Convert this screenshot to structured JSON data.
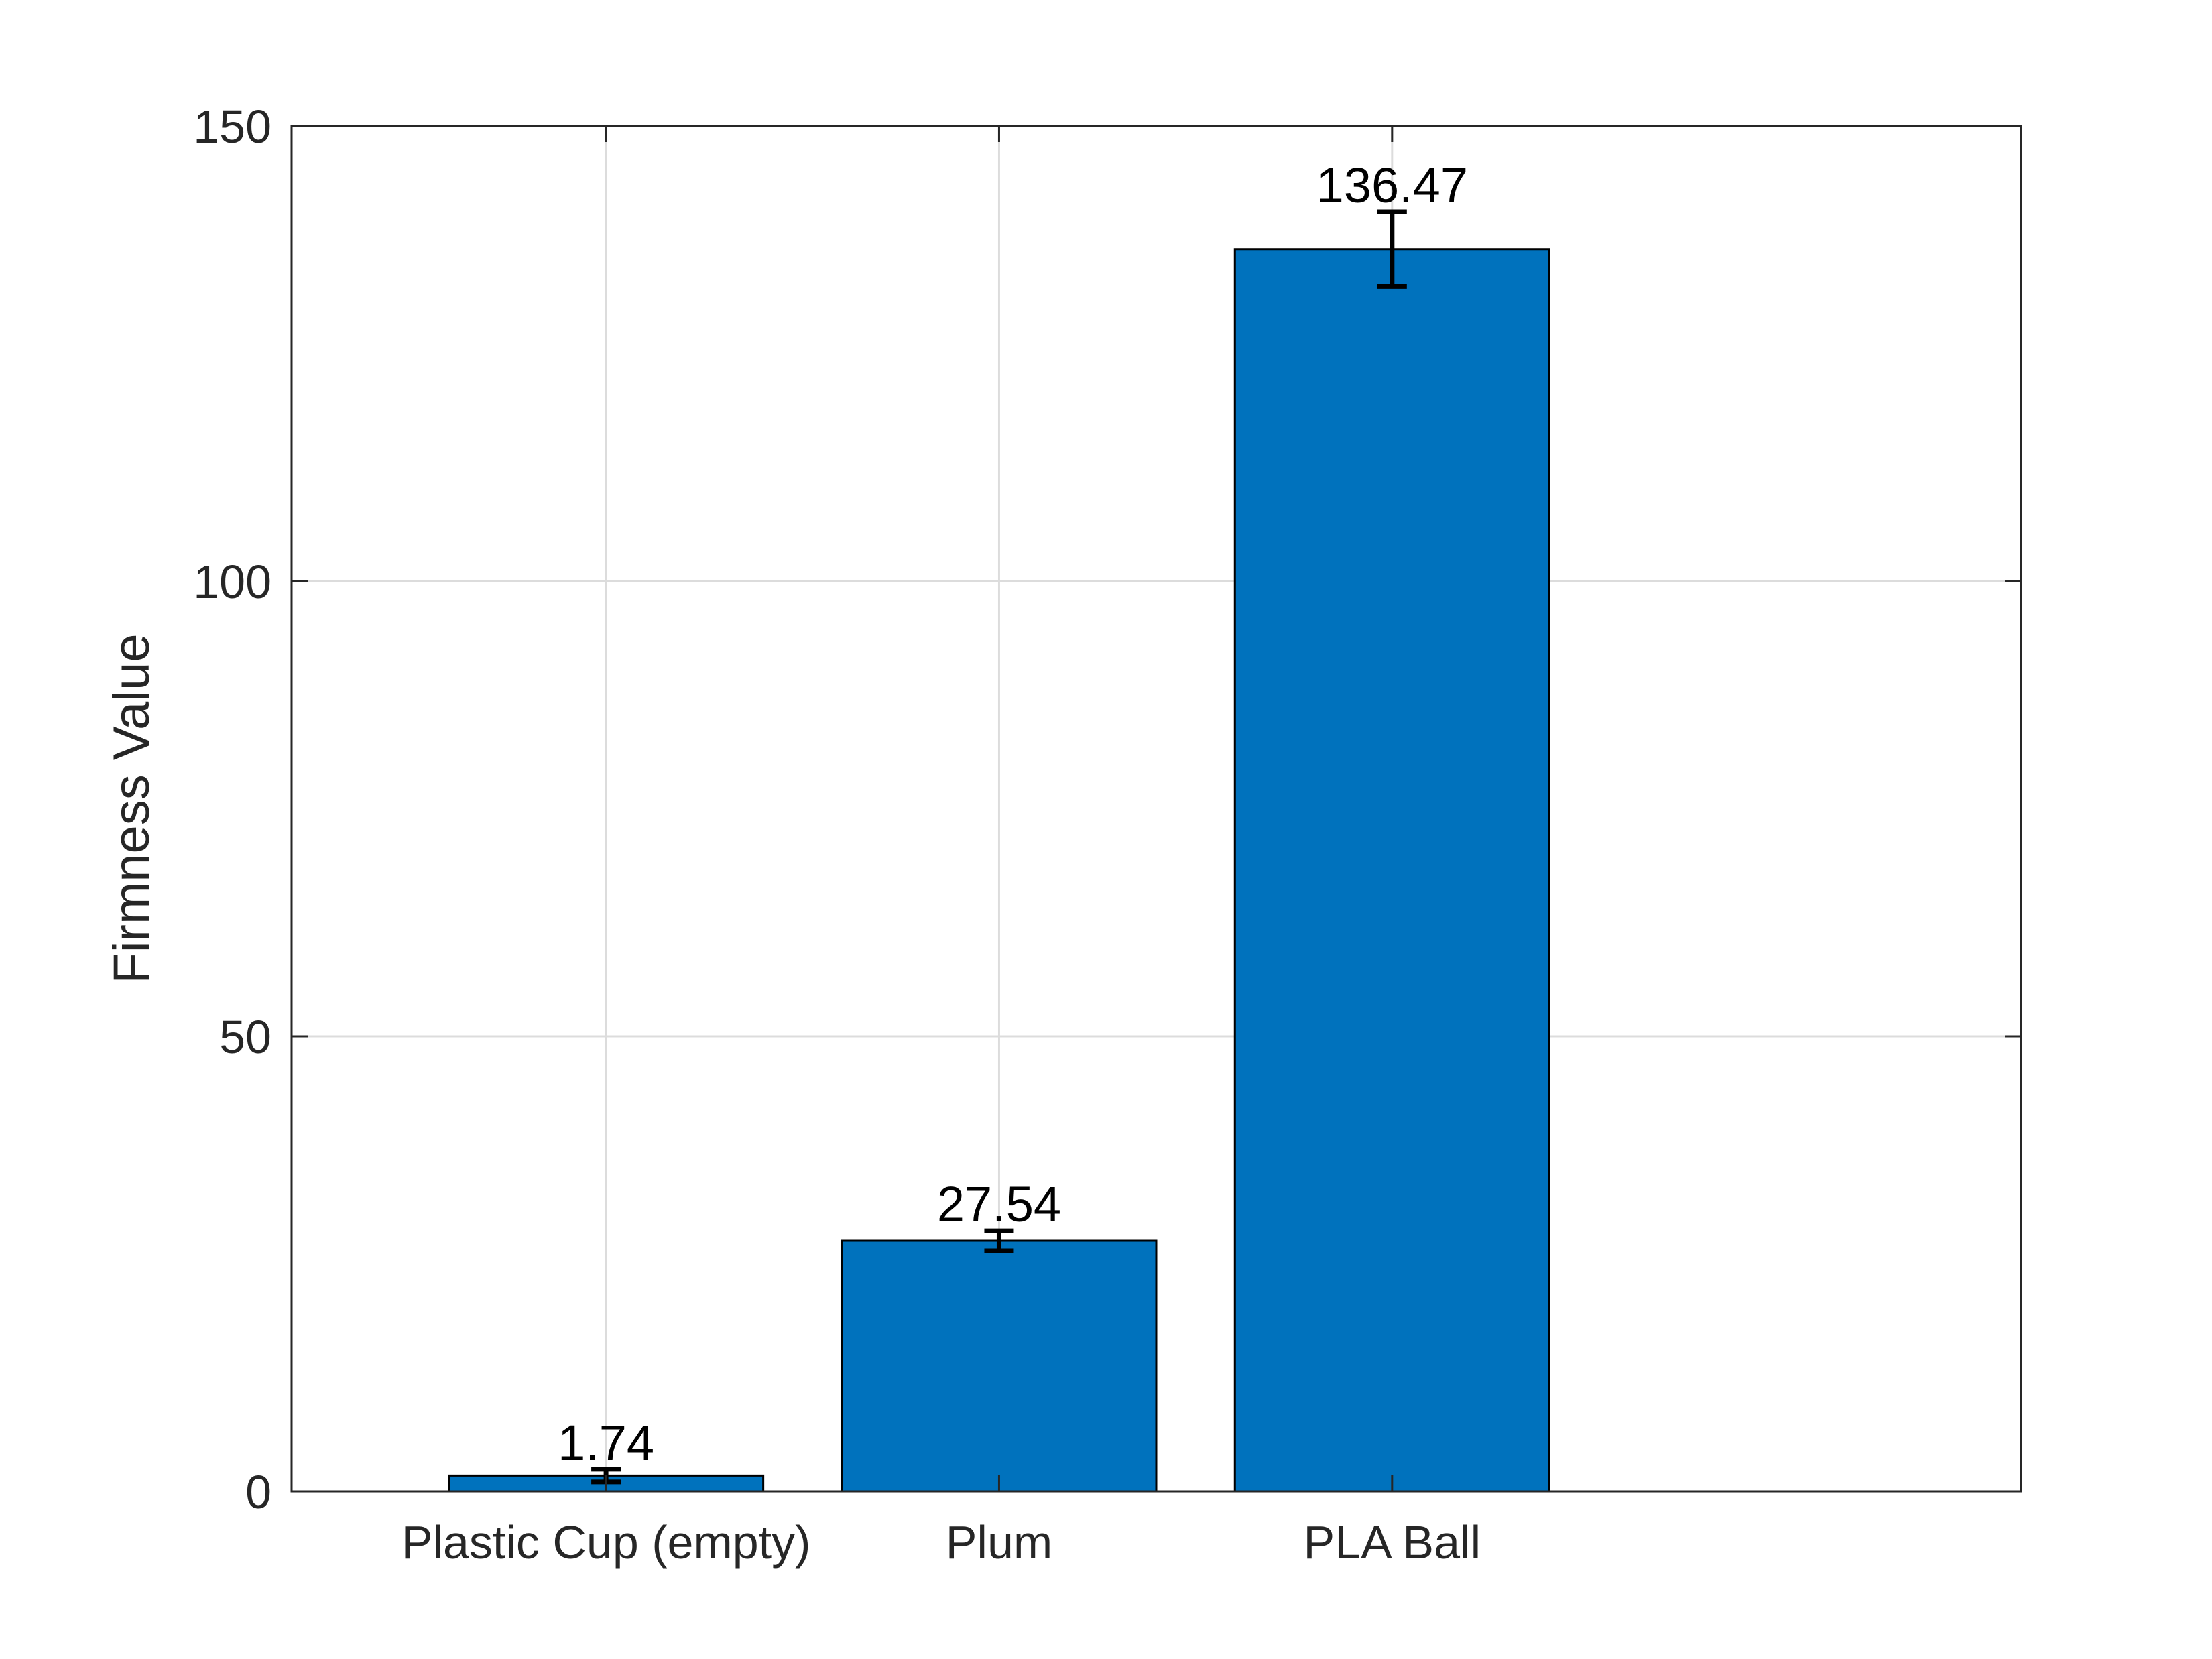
{
  "chart_data": {
    "type": "bar",
    "title": "",
    "xlabel": "",
    "ylabel": "Firmness Value",
    "categories": [
      "Plastic Cup (empty)",
      "Plum",
      "PLA Ball"
    ],
    "values": [
      1.74,
      27.54,
      136.47
    ],
    "data_labels": [
      "1.74",
      "27.54",
      "136.47"
    ],
    "error_bars": [
      0.7,
      1.1,
      4.1
    ],
    "xlim": [
      0.2,
      4.6
    ],
    "ylim": [
      0,
      150
    ],
    "yticks": [
      0,
      50,
      100,
      150
    ],
    "ytick_labels": [
      "0",
      "50",
      "100",
      "150"
    ],
    "grid": true,
    "bar_color": "#0072bd",
    "edge_color": "#000000",
    "axis_color": "#262626",
    "grid_color": "#dcdcdc"
  }
}
